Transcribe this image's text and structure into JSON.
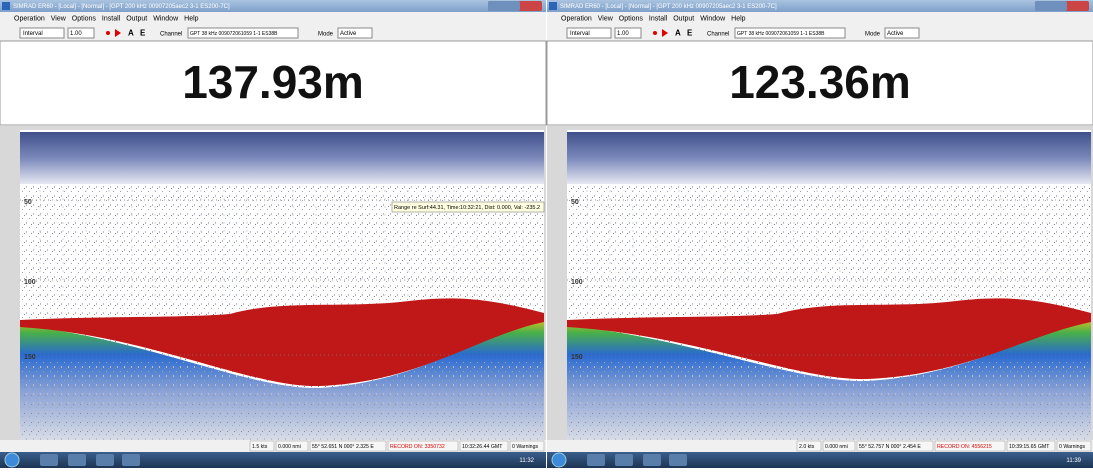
{
  "windows": [
    {
      "title": "SIMRAD ER60 - [Local] - [Normal] - [GPT 200 kHz 00907205aec2 3-1 ES200-7C]",
      "menu": [
        "Operation",
        "View",
        "Options",
        "Install",
        "Output",
        "Window",
        "Help"
      ],
      "toolbar": {
        "mode": "Interval",
        "interval": "1.00",
        "a": "A",
        "e": "E",
        "channel_label": "Channel",
        "channel": "GPT 38 kHz 009072061059 1-1 ES38B",
        "mode_label": "Mode",
        "ping_mode": "Active"
      },
      "depth": "137.93m",
      "depth_ticks": [
        "50",
        "100",
        "150"
      ],
      "tooltip": "Range re Surf:44.31, Time:10:32:21, Dist: 0.000, Val: -235.2",
      "status": [
        "1.5 kts",
        "0.000 nmi",
        "55° 52.651 N 000° 2.325 E",
        "RECORD ON: 3350732",
        "10:32:26.44 GMT",
        "0 Warnings"
      ],
      "clock": "11:32"
    },
    {
      "title": "SIMRAD ER60 - [Local] - [Normal] - [GPT 200 kHz 00907205aec2 3-1 ES200-7C]",
      "menu": [
        "Operation",
        "View",
        "Options",
        "Install",
        "Output",
        "Window",
        "Help"
      ],
      "toolbar": {
        "mode": "Interval",
        "interval": "1.00",
        "a": "A",
        "e": "E",
        "channel_label": "Channel",
        "channel": "GPT 38 kHz 009072061059 1-1 ES38B",
        "mode_label": "Mode",
        "ping_mode": "Active"
      },
      "depth": "123.36m",
      "depth_ticks": [
        "50",
        "100",
        "150"
      ],
      "status": [
        "2.0 kts",
        "0.000 nmi",
        "55° 52.757 N 000° 2.454 E",
        "RECORD ON: 4556215",
        "10:39:15.65 GMT",
        "0 Warnings"
      ],
      "clock": "11:39"
    }
  ]
}
